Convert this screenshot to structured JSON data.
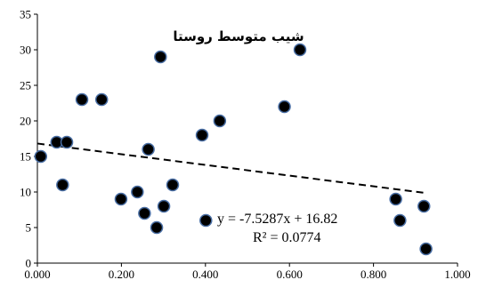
{
  "chart_data": {
    "type": "scatter",
    "title": "شیب متوسط روستا",
    "xlim": [
      0,
      1.0
    ],
    "ylim": [
      0,
      35
    ],
    "x_ticks": [
      0,
      0.2,
      0.4,
      0.6,
      0.8,
      1.0
    ],
    "x_tick_labels": [
      "0.000",
      "0.200",
      "0.400",
      "0.600",
      "0.800",
      "1.000"
    ],
    "y_ticks": [
      0,
      5,
      10,
      15,
      20,
      25,
      30,
      35
    ],
    "y_tick_labels": [
      "0",
      "5",
      "10",
      "15",
      "20",
      "25",
      "30",
      "35"
    ],
    "grid": false,
    "points": [
      {
        "x": 0.008,
        "y": 15
      },
      {
        "x": 0.046,
        "y": 17
      },
      {
        "x": 0.06,
        "y": 11
      },
      {
        "x": 0.07,
        "y": 17
      },
      {
        "x": 0.106,
        "y": 23
      },
      {
        "x": 0.153,
        "y": 23
      },
      {
        "x": 0.199,
        "y": 9
      },
      {
        "x": 0.238,
        "y": 10
      },
      {
        "x": 0.255,
        "y": 7
      },
      {
        "x": 0.264,
        "y": 16
      },
      {
        "x": 0.284,
        "y": 5
      },
      {
        "x": 0.293,
        "y": 29
      },
      {
        "x": 0.301,
        "y": 8
      },
      {
        "x": 0.322,
        "y": 11
      },
      {
        "x": 0.392,
        "y": 18
      },
      {
        "x": 0.401,
        "y": 6
      },
      {
        "x": 0.434,
        "y": 20
      },
      {
        "x": 0.588,
        "y": 22
      },
      {
        "x": 0.625,
        "y": 30
      },
      {
        "x": 0.853,
        "y": 9
      },
      {
        "x": 0.863,
        "y": 6
      },
      {
        "x": 0.92,
        "y": 8
      },
      {
        "x": 0.925,
        "y": 2
      }
    ],
    "trendline": {
      "slope": -7.5287,
      "intercept": 16.82,
      "x_range": [
        0,
        0.925
      ],
      "style": "dashed",
      "equation_label": "y = -7.5287x + 16.82",
      "r2_label": "R² = 0.0774"
    },
    "marker_fill": "#000000",
    "marker_stroke": "#4a6fa5",
    "trendline_color": "#000000"
  }
}
